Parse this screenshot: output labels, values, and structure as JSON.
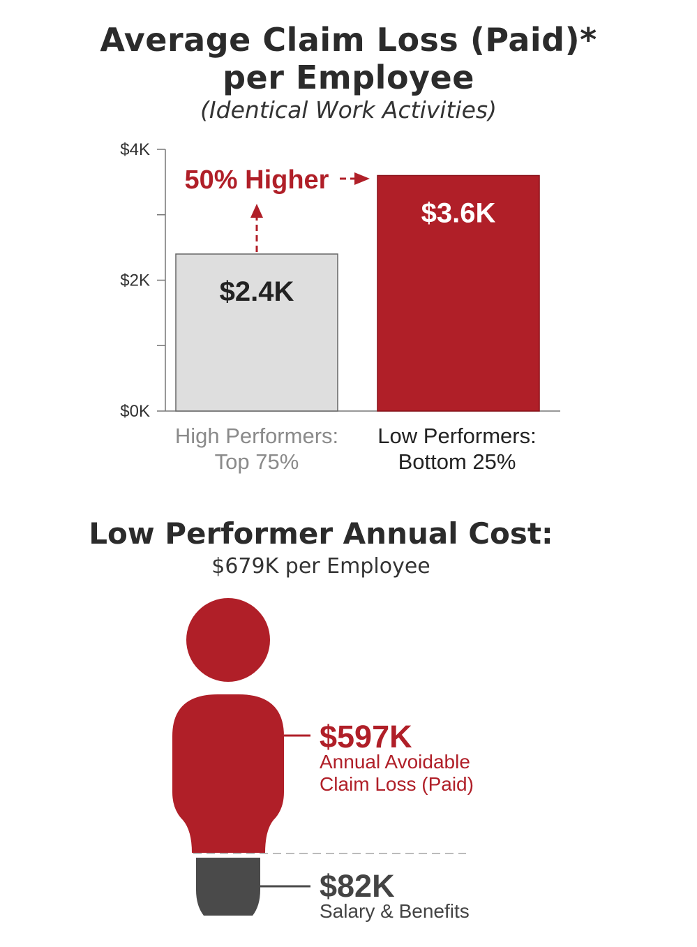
{
  "title_line1": "Average Claim Loss (Paid)*",
  "title_line2": "per Employee",
  "subtitle": "(Identical Work Activities)",
  "colors": {
    "accent_red": "#b01f28",
    "light_gray": "#dedede",
    "dark_gray": "#4a4a4a",
    "text": "#2b2b2b"
  },
  "chart_data": {
    "type": "bar",
    "categories": [
      "High Performers: Top 75%",
      "Low Performers: Bottom 25%"
    ],
    "category_lines": [
      [
        "High Performers:",
        "Top 75%"
      ],
      [
        "Low Performers:",
        "Bottom 25%"
      ]
    ],
    "values": [
      2.4,
      3.6
    ],
    "value_labels": [
      "$2.4K",
      "$3.6K"
    ],
    "bar_colors": [
      "#dedede",
      "#b01f28"
    ],
    "ylim": [
      0,
      4
    ],
    "yticks": [
      0,
      1,
      2,
      3,
      4
    ],
    "ytick_labels": [
      "$0K",
      "",
      "$2K",
      "",
      "$4K"
    ],
    "annotation": "50% Higher",
    "xlabel": "",
    "ylabel": ""
  },
  "cost_section": {
    "title": "Low Performer Annual Cost:",
    "subtitle": "$679K per Employee",
    "avoidable": {
      "value": "$597K",
      "label_line1": "Annual Avoidable",
      "label_line2": "Claim Loss (Paid)"
    },
    "salary": {
      "value": "$82K",
      "label": "Salary & Benefits"
    }
  }
}
